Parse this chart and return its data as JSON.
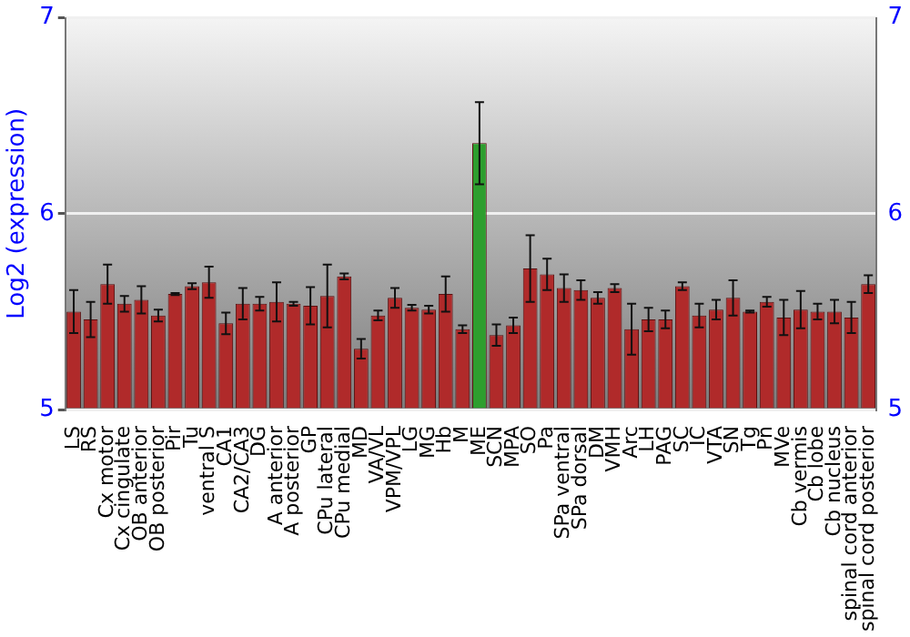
{
  "chart_data": {
    "type": "bar",
    "ylabel": "Log2 (expression)",
    "categories": [
      "LS",
      "RS",
      "Cx motor",
      "Cx cingulate",
      "OB anterior",
      "OB posterior",
      "Pir",
      "Tu",
      "ventral S",
      "CA1",
      "CA2/CA3",
      "DG",
      "A anterior",
      "A posterior",
      "GP",
      "CPu lateral",
      "CPu medial",
      "MD",
      "VA/VL",
      "VPM/VPL",
      "LG",
      "MG",
      "Hb",
      "M",
      "ME",
      "SCN",
      "MPA",
      "SO",
      "Pa",
      "SPa ventral",
      "SPa dorsal",
      "DM",
      "VMH",
      "Arc",
      "LH",
      "PAG",
      "SC",
      "IC",
      "VTA",
      "SN",
      "Tg",
      "Pn",
      "MVe",
      "Cb vermis",
      "Cb lobe",
      "Cb nucleus",
      "spinal cord anterior",
      "spinal cord posterior"
    ],
    "values": [
      5.5,
      5.46,
      5.64,
      5.54,
      5.56,
      5.48,
      5.59,
      5.63,
      5.65,
      5.44,
      5.54,
      5.54,
      5.55,
      5.54,
      5.53,
      5.58,
      5.68,
      5.31,
      5.48,
      5.57,
      5.52,
      5.51,
      5.59,
      5.41,
      6.36,
      5.38,
      5.43,
      5.72,
      5.69,
      5.62,
      5.61,
      5.57,
      5.62,
      5.41,
      5.46,
      5.46,
      5.63,
      5.48,
      5.51,
      5.57,
      5.5,
      5.55,
      5.47,
      5.51,
      5.5,
      5.5,
      5.47,
      5.64
    ],
    "errors": [
      0.11,
      0.09,
      0.1,
      0.04,
      0.07,
      0.03,
      0.005,
      0.015,
      0.08,
      0.055,
      0.08,
      0.035,
      0.1,
      0.01,
      0.095,
      0.16,
      0.015,
      0.05,
      0.025,
      0.05,
      0.015,
      0.02,
      0.09,
      0.02,
      0.21,
      0.055,
      0.04,
      0.17,
      0.08,
      0.07,
      0.05,
      0.03,
      0.02,
      0.13,
      0.06,
      0.045,
      0.02,
      0.06,
      0.05,
      0.09,
      0.005,
      0.025,
      0.09,
      0.095,
      0.04,
      0.06,
      0.08,
      0.045
    ],
    "colors": [
      "#b02a2a",
      "#b02a2a",
      "#b02a2a",
      "#b02a2a",
      "#b02a2a",
      "#b02a2a",
      "#b02a2a",
      "#b02a2a",
      "#b02a2a",
      "#b02a2a",
      "#b02a2a",
      "#b02a2a",
      "#b02a2a",
      "#b02a2a",
      "#b02a2a",
      "#b02a2a",
      "#b02a2a",
      "#b02a2a",
      "#b02a2a",
      "#b02a2a",
      "#b02a2a",
      "#b02a2a",
      "#b02a2a",
      "#b02a2a",
      "#2e9e2e",
      "#b02a2a",
      "#b02a2a",
      "#b02a2a",
      "#b02a2a",
      "#b02a2a",
      "#b02a2a",
      "#b02a2a",
      "#b02a2a",
      "#b02a2a",
      "#b02a2a",
      "#b02a2a",
      "#b02a2a",
      "#b02a2a",
      "#b02a2a",
      "#b02a2a",
      "#b02a2a",
      "#b02a2a",
      "#b02a2a",
      "#b02a2a",
      "#b02a2a",
      "#b02a2a",
      "#b02a2a",
      "#b02a2a"
    ],
    "ylim": [
      5,
      7
    ],
    "yticks": [
      5,
      6,
      7
    ],
    "y2lim": [
      5,
      7
    ],
    "y2ticks": [
      5,
      6,
      7
    ],
    "grid": "y",
    "legend": false
  }
}
